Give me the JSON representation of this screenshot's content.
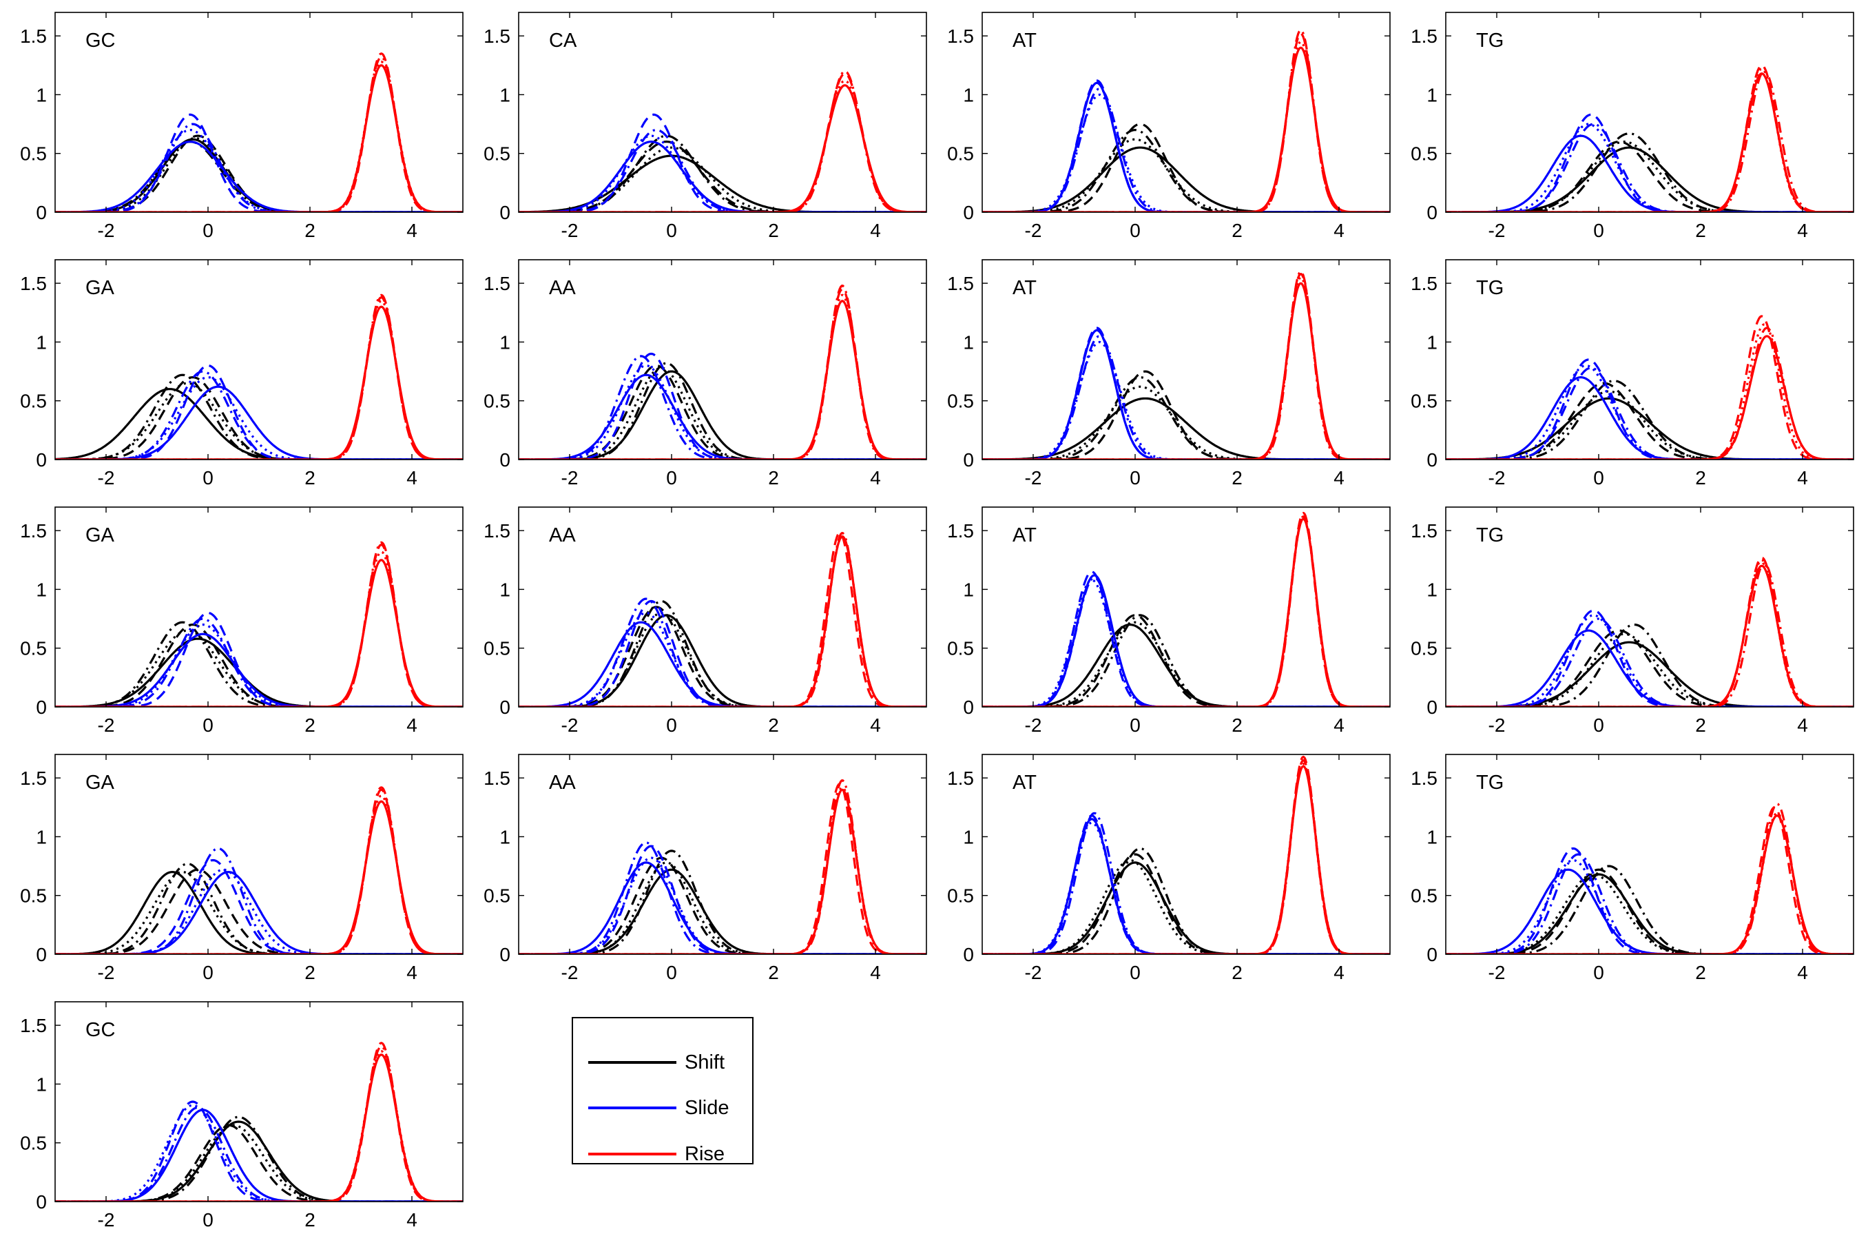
{
  "legend": {
    "items": [
      {
        "label": "Shift",
        "color": "#000000"
      },
      {
        "label": "Slide",
        "color": "#0000ff"
      },
      {
        "label": "Rise",
        "color": "#ff0000"
      }
    ]
  },
  "chart_data": {
    "type": "line",
    "xlim": [
      -3,
      5
    ],
    "ylim": [
      0,
      1.7
    ],
    "xticks": [
      -2,
      0,
      2,
      4
    ],
    "xtick_labels": [
      "-2",
      "0",
      "2",
      "4"
    ],
    "yticks": [
      0,
      0.5,
      1,
      1.5
    ],
    "ytick_labels": [
      "0",
      "0.5",
      "1",
      "1.5"
    ],
    "grid": false,
    "legend_position": "bottom-center",
    "series_names": [
      "Shift",
      "Slide",
      "Rise"
    ],
    "series_colors": {
      "Shift": "#000000",
      "Slide": "#0000ff",
      "Rise": "#ff0000"
    },
    "line_styles": [
      "solid",
      "dashed",
      "dashdot",
      "dotted"
    ],
    "panels": [
      {
        "label": "GC",
        "shift": [
          [
            -0.3,
            0.62,
            0.6
          ],
          [
            -0.2,
            0.65,
            0.55
          ],
          [
            -0.35,
            0.6,
            0.6
          ],
          [
            -0.25,
            0.63,
            0.58
          ]
        ],
        "slide": [
          [
            -0.35,
            0.6,
            0.65
          ],
          [
            -0.35,
            0.83,
            0.45
          ],
          [
            -0.3,
            0.75,
            0.5
          ],
          [
            -0.35,
            0.7,
            0.55
          ]
        ],
        "rise": [
          [
            3.4,
            1.25,
            0.3
          ],
          [
            3.4,
            1.35,
            0.28
          ],
          [
            3.4,
            1.32,
            0.29
          ],
          [
            3.4,
            1.28,
            0.3
          ]
        ]
      },
      {
        "label": "CA",
        "shift": [
          [
            0.0,
            0.48,
            0.85
          ],
          [
            -0.1,
            0.6,
            0.65
          ],
          [
            -0.1,
            0.65,
            0.6
          ],
          [
            0.0,
            0.55,
            0.7
          ]
        ],
        "slide": [
          [
            -0.4,
            0.6,
            0.6
          ],
          [
            -0.35,
            0.83,
            0.45
          ],
          [
            -0.3,
            0.7,
            0.5
          ],
          [
            -0.4,
            0.65,
            0.55
          ]
        ],
        "rise": [
          [
            3.4,
            1.08,
            0.35
          ],
          [
            3.4,
            1.18,
            0.33
          ],
          [
            3.4,
            1.2,
            0.32
          ],
          [
            3.4,
            1.12,
            0.34
          ]
        ]
      },
      {
        "label": "AT",
        "shift": [
          [
            0.1,
            0.55,
            0.75
          ],
          [
            0.1,
            0.75,
            0.5
          ],
          [
            0.0,
            0.7,
            0.55
          ],
          [
            0.0,
            0.62,
            0.62
          ]
        ],
        "slide": [
          [
            -0.75,
            1.1,
            0.35
          ],
          [
            -0.75,
            1.12,
            0.35
          ],
          [
            -0.7,
            1.05,
            0.37
          ],
          [
            -0.7,
            1.0,
            0.4
          ]
        ],
        "rise": [
          [
            3.25,
            1.4,
            0.27
          ],
          [
            3.25,
            1.52,
            0.25
          ],
          [
            3.25,
            1.55,
            0.25
          ],
          [
            3.25,
            1.45,
            0.26
          ]
        ]
      },
      {
        "label": "TG",
        "shift": [
          [
            0.6,
            0.55,
            0.75
          ],
          [
            0.4,
            0.6,
            0.6
          ],
          [
            0.6,
            0.67,
            0.6
          ],
          [
            0.5,
            0.6,
            0.65
          ]
        ],
        "slide": [
          [
            -0.35,
            0.65,
            0.55
          ],
          [
            -0.15,
            0.83,
            0.45
          ],
          [
            -0.1,
            0.75,
            0.48
          ],
          [
            -0.2,
            0.75,
            0.5
          ]
        ],
        "rise": [
          [
            3.2,
            1.18,
            0.3
          ],
          [
            3.2,
            1.25,
            0.29
          ],
          [
            3.25,
            1.2,
            0.3
          ],
          [
            3.2,
            1.22,
            0.29
          ]
        ]
      },
      {
        "label": "GA",
        "shift": [
          [
            -0.75,
            0.6,
            0.7
          ],
          [
            -0.3,
            0.7,
            0.55
          ],
          [
            -0.5,
            0.72,
            0.55
          ],
          [
            -0.4,
            0.65,
            0.6
          ]
        ],
        "slide": [
          [
            0.2,
            0.62,
            0.6
          ],
          [
            0.0,
            0.8,
            0.45
          ],
          [
            -0.1,
            0.75,
            0.5
          ],
          [
            0.0,
            0.7,
            0.55
          ]
        ],
        "rise": [
          [
            3.4,
            1.3,
            0.3
          ],
          [
            3.4,
            1.38,
            0.28
          ],
          [
            3.4,
            1.4,
            0.28
          ],
          [
            3.4,
            1.35,
            0.29
          ]
        ]
      },
      {
        "label": "AA",
        "shift": [
          [
            0.0,
            0.75,
            0.55
          ],
          [
            -0.3,
            0.8,
            0.5
          ],
          [
            -0.1,
            0.82,
            0.48
          ],
          [
            -0.2,
            0.78,
            0.5
          ]
        ],
        "slide": [
          [
            -0.5,
            0.72,
            0.55
          ],
          [
            -0.4,
            0.9,
            0.43
          ],
          [
            -0.6,
            0.88,
            0.45
          ],
          [
            -0.5,
            0.8,
            0.48
          ]
        ],
        "rise": [
          [
            3.35,
            1.35,
            0.28
          ],
          [
            3.35,
            1.45,
            0.27
          ],
          [
            3.35,
            1.48,
            0.26
          ],
          [
            3.35,
            1.4,
            0.27
          ]
        ]
      },
      {
        "label": "AT",
        "shift": [
          [
            0.2,
            0.52,
            0.8
          ],
          [
            0.2,
            0.75,
            0.5
          ],
          [
            0.1,
            0.7,
            0.55
          ],
          [
            0.1,
            0.62,
            0.62
          ]
        ],
        "slide": [
          [
            -0.75,
            1.1,
            0.35
          ],
          [
            -0.75,
            1.12,
            0.35
          ],
          [
            -0.7,
            1.05,
            0.37
          ],
          [
            -0.7,
            1.0,
            0.4
          ]
        ],
        "rise": [
          [
            3.25,
            1.5,
            0.26
          ],
          [
            3.25,
            1.58,
            0.25
          ],
          [
            3.25,
            1.6,
            0.24
          ],
          [
            3.25,
            1.55,
            0.25
          ]
        ]
      },
      {
        "label": "TG",
        "shift": [
          [
            0.2,
            0.52,
            0.8
          ],
          [
            0.1,
            0.65,
            0.6
          ],
          [
            0.3,
            0.67,
            0.6
          ],
          [
            0.2,
            0.58,
            0.65
          ]
        ],
        "slide": [
          [
            -0.35,
            0.7,
            0.55
          ],
          [
            -0.2,
            0.85,
            0.45
          ],
          [
            -0.15,
            0.78,
            0.48
          ],
          [
            -0.25,
            0.8,
            0.5
          ]
        ],
        "rise": [
          [
            3.3,
            1.05,
            0.33
          ],
          [
            3.2,
            1.22,
            0.3
          ],
          [
            3.3,
            1.12,
            0.32
          ],
          [
            3.25,
            1.15,
            0.31
          ]
        ]
      },
      {
        "label": "GA",
        "shift": [
          [
            -0.2,
            0.58,
            0.7
          ],
          [
            -0.3,
            0.7,
            0.55
          ],
          [
            -0.5,
            0.72,
            0.55
          ],
          [
            -0.4,
            0.65,
            0.6
          ]
        ],
        "slide": [
          [
            -0.1,
            0.62,
            0.6
          ],
          [
            0.0,
            0.8,
            0.45
          ],
          [
            -0.1,
            0.75,
            0.5
          ],
          [
            -0.1,
            0.7,
            0.55
          ]
        ],
        "rise": [
          [
            3.4,
            1.25,
            0.3
          ],
          [
            3.4,
            1.38,
            0.28
          ],
          [
            3.4,
            1.4,
            0.28
          ],
          [
            3.4,
            1.32,
            0.29
          ]
        ]
      },
      {
        "label": "AA",
        "shift": [
          [
            -0.1,
            0.78,
            0.55
          ],
          [
            -0.3,
            0.85,
            0.5
          ],
          [
            -0.2,
            0.9,
            0.48
          ],
          [
            -0.2,
            0.8,
            0.5
          ]
        ],
        "slide": [
          [
            -0.6,
            0.72,
            0.55
          ],
          [
            -0.4,
            0.9,
            0.43
          ],
          [
            -0.5,
            0.92,
            0.45
          ],
          [
            -0.5,
            0.8,
            0.48
          ]
        ],
        "rise": [
          [
            3.35,
            1.45,
            0.27
          ],
          [
            3.3,
            1.48,
            0.26
          ],
          [
            3.35,
            1.48,
            0.26
          ],
          [
            3.35,
            1.45,
            0.27
          ]
        ]
      },
      {
        "label": "AT",
        "shift": [
          [
            -0.1,
            0.7,
            0.6
          ],
          [
            0.0,
            0.78,
            0.5
          ],
          [
            0.1,
            0.78,
            0.5
          ],
          [
            0.0,
            0.72,
            0.55
          ]
        ],
        "slide": [
          [
            -0.8,
            1.12,
            0.35
          ],
          [
            -0.85,
            1.15,
            0.34
          ],
          [
            -0.8,
            1.1,
            0.35
          ],
          [
            -0.85,
            1.08,
            0.36
          ]
        ],
        "rise": [
          [
            3.3,
            1.6,
            0.25
          ],
          [
            3.3,
            1.65,
            0.24
          ],
          [
            3.3,
            1.62,
            0.24
          ],
          [
            3.3,
            1.6,
            0.25
          ]
        ]
      },
      {
        "label": "TG",
        "shift": [
          [
            0.6,
            0.55,
            0.75
          ],
          [
            0.4,
            0.65,
            0.6
          ],
          [
            0.7,
            0.7,
            0.55
          ],
          [
            0.5,
            0.62,
            0.62
          ]
        ],
        "slide": [
          [
            -0.2,
            0.65,
            0.55
          ],
          [
            -0.1,
            0.82,
            0.45
          ],
          [
            0.0,
            0.75,
            0.48
          ],
          [
            -0.1,
            0.78,
            0.5
          ]
        ],
        "rise": [
          [
            3.2,
            1.2,
            0.3
          ],
          [
            3.2,
            1.27,
            0.29
          ],
          [
            3.25,
            1.22,
            0.29
          ],
          [
            3.2,
            1.25,
            0.29
          ]
        ]
      },
      {
        "label": "GA",
        "shift": [
          [
            -0.7,
            0.7,
            0.55
          ],
          [
            -0.2,
            0.72,
            0.55
          ],
          [
            -0.4,
            0.77,
            0.5
          ],
          [
            -0.5,
            0.7,
            0.55
          ]
        ],
        "slide": [
          [
            0.4,
            0.7,
            0.55
          ],
          [
            0.1,
            0.8,
            0.48
          ],
          [
            0.2,
            0.9,
            0.45
          ],
          [
            0.3,
            0.72,
            0.52
          ]
        ],
        "rise": [
          [
            3.4,
            1.3,
            0.3
          ],
          [
            3.4,
            1.4,
            0.28
          ],
          [
            3.4,
            1.42,
            0.28
          ],
          [
            3.4,
            1.35,
            0.29
          ]
        ]
      },
      {
        "label": "AA",
        "shift": [
          [
            0.0,
            0.72,
            0.55
          ],
          [
            -0.2,
            0.82,
            0.5
          ],
          [
            0.0,
            0.88,
            0.48
          ],
          [
            -0.1,
            0.78,
            0.5
          ]
        ],
        "slide": [
          [
            -0.5,
            0.78,
            0.52
          ],
          [
            -0.4,
            0.92,
            0.43
          ],
          [
            -0.5,
            0.95,
            0.42
          ],
          [
            -0.4,
            0.82,
            0.47
          ]
        ],
        "rise": [
          [
            3.35,
            1.4,
            0.27
          ],
          [
            3.3,
            1.45,
            0.26
          ],
          [
            3.35,
            1.48,
            0.26
          ],
          [
            3.35,
            1.42,
            0.27
          ]
        ]
      },
      {
        "label": "AT",
        "shift": [
          [
            0.0,
            0.78,
            0.55
          ],
          [
            0.0,
            0.85,
            0.5
          ],
          [
            0.1,
            0.9,
            0.48
          ],
          [
            -0.1,
            0.8,
            0.52
          ]
        ],
        "slide": [
          [
            -0.85,
            1.15,
            0.35
          ],
          [
            -0.85,
            1.18,
            0.34
          ],
          [
            -0.8,
            1.2,
            0.34
          ],
          [
            -0.85,
            1.12,
            0.36
          ]
        ],
        "rise": [
          [
            3.3,
            1.6,
            0.25
          ],
          [
            3.3,
            1.68,
            0.24
          ],
          [
            3.3,
            1.65,
            0.24
          ],
          [
            3.3,
            1.62,
            0.25
          ]
        ]
      },
      {
        "label": "TG",
        "shift": [
          [
            0.0,
            0.68,
            0.6
          ],
          [
            0.0,
            0.72,
            0.55
          ],
          [
            0.2,
            0.75,
            0.55
          ],
          [
            -0.1,
            0.68,
            0.58
          ]
        ],
        "slide": [
          [
            -0.6,
            0.72,
            0.55
          ],
          [
            -0.5,
            0.9,
            0.43
          ],
          [
            -0.4,
            0.85,
            0.45
          ],
          [
            -0.5,
            0.8,
            0.48
          ]
        ],
        "rise": [
          [
            3.5,
            1.18,
            0.3
          ],
          [
            3.45,
            1.25,
            0.28
          ],
          [
            3.5,
            1.28,
            0.28
          ],
          [
            3.5,
            1.2,
            0.29
          ]
        ]
      },
      {
        "label": "GC",
        "shift": [
          [
            0.6,
            0.68,
            0.6
          ],
          [
            0.4,
            0.65,
            0.55
          ],
          [
            0.6,
            0.72,
            0.55
          ],
          [
            0.5,
            0.65,
            0.58
          ]
        ],
        "slide": [
          [
            -0.1,
            0.78,
            0.52
          ],
          [
            -0.3,
            0.85,
            0.45
          ],
          [
            -0.2,
            0.8,
            0.48
          ],
          [
            -0.3,
            0.82,
            0.5
          ]
        ],
        "rise": [
          [
            3.4,
            1.25,
            0.3
          ],
          [
            3.4,
            1.35,
            0.28
          ],
          [
            3.4,
            1.32,
            0.29
          ],
          [
            3.4,
            1.28,
            0.3
          ]
        ]
      }
    ]
  }
}
